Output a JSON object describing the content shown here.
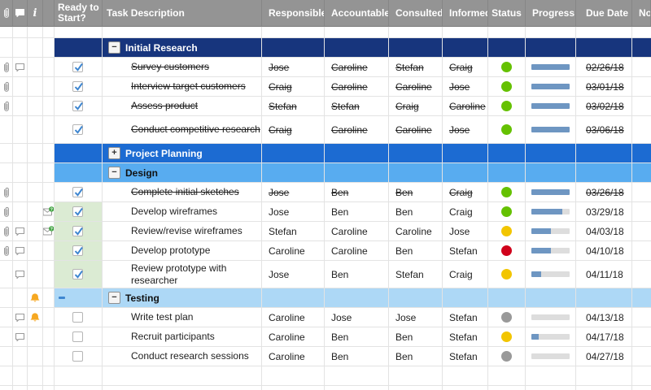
{
  "header": {
    "info_label": "i",
    "columns": [
      "Ready to Start?",
      "Task Description",
      "Responsible",
      "Accountable",
      "Consulted",
      "Informed",
      "Status",
      "Progress",
      "Due Date",
      "Notes"
    ]
  },
  "icons": {
    "paperclip-icon": "attachment paperclip glyph",
    "comment-icon": "speech-bubble comment glyph",
    "info-icon": "italic i",
    "reminder-bell-icon": "amber bell",
    "update-request-icon": "envelope with green ? badge",
    "checkbox-check": "blue checkmark",
    "collapse-icon": "−",
    "expand-icon": "+"
  },
  "colors": {
    "header_bg": "#949494",
    "grid_line": "#E3E3E3",
    "section_navy": "#17357D",
    "section_royal": "#1C6BD2",
    "section_sky": "#58ACF0",
    "section_pale": "#ADD8F6",
    "section_light_text": "#FFFFFF",
    "section_dark_text": "#111111",
    "ready_done_bg": "#DBEBD3",
    "status_green": "#65C101",
    "status_yellow": "#F2C500",
    "status_red": "#D0021B",
    "status_gray": "#999999",
    "progress_fill": "#6E96C2",
    "progress_track": "#DDDDDD",
    "accent_blue": "#3E86D0"
  },
  "rows": [
    {
      "type": "spacer"
    },
    {
      "type": "section",
      "toggle": "collapse",
      "title": "Initial Research",
      "bg": "section_navy",
      "fg": "section_light_text"
    },
    {
      "type": "task",
      "attach": true,
      "comment": true,
      "done": true,
      "strike": true,
      "task": "Survey customers",
      "responsible": "Jose",
      "accountable": "Caroline",
      "consulted": "Stefan",
      "informed": "Craig",
      "status": "green",
      "progress": 100,
      "due": "02/26/18"
    },
    {
      "type": "task",
      "attach": true,
      "done": true,
      "strike": true,
      "task": "Interview target customers",
      "responsible": "Craig",
      "accountable": "Caroline",
      "consulted": "Caroline",
      "informed": "Jose",
      "status": "green",
      "progress": 100,
      "due": "03/01/18"
    },
    {
      "type": "task",
      "attach": true,
      "done": true,
      "strike": true,
      "task": "Assess product",
      "responsible": "Stefan",
      "accountable": "Stefan",
      "consulted": "Craig",
      "informed": "Caroline",
      "status": "green",
      "progress": 100,
      "due": "03/02/18"
    },
    {
      "type": "task",
      "done": true,
      "strike": true,
      "tall": true,
      "task": "Conduct competitive research",
      "responsible": "Craig",
      "accountable": "Caroline",
      "consulted": "Caroline",
      "informed": "Jose",
      "status": "green",
      "progress": 100,
      "due": "03/06/18"
    },
    {
      "type": "section",
      "toggle": "expand",
      "title": "Project Planning",
      "bg": "section_royal",
      "fg": "section_light_text"
    },
    {
      "type": "section",
      "toggle": "collapse",
      "title": "Design",
      "bg": "section_sky",
      "fg": "section_dark_text"
    },
    {
      "type": "task",
      "attach": true,
      "done": true,
      "strike": true,
      "task": "Complete initial sketches",
      "responsible": "Jose",
      "accountable": "Ben",
      "consulted": "Ben",
      "informed": "Craig",
      "status": "green",
      "progress": 100,
      "due": "03/26/18"
    },
    {
      "type": "task",
      "attach": true,
      "update": true,
      "done": true,
      "greenCell": true,
      "task": "Develop wireframes",
      "responsible": "Jose",
      "accountable": "Ben",
      "consulted": "Ben",
      "informed": "Craig",
      "status": "green",
      "progress": 80,
      "due": "03/29/18"
    },
    {
      "type": "task",
      "attach": true,
      "comment": true,
      "update": true,
      "done": true,
      "greenCell": true,
      "task": "Review/revise wireframes",
      "responsible": "Stefan",
      "accountable": "Caroline",
      "consulted": "Caroline",
      "informed": "Jose",
      "status": "yellow",
      "progress": 50,
      "due": "04/03/18"
    },
    {
      "type": "task",
      "attach": true,
      "comment": true,
      "done": true,
      "greenCell": true,
      "task": "Develop prototype",
      "responsible": "Caroline",
      "accountable": "Caroline",
      "consulted": "Ben",
      "informed": "Stefan",
      "status": "red",
      "progress": 50,
      "due": "04/10/18"
    },
    {
      "type": "task",
      "comment": true,
      "done": true,
      "greenCell": true,
      "tall": true,
      "task": "Review prototype with researcher",
      "responsible": "Jose",
      "accountable": "Ben",
      "consulted": "Stefan",
      "informed": "Craig",
      "status": "yellow",
      "progress": 25,
      "due": "04/11/18"
    },
    {
      "type": "section",
      "toggle": "collapse",
      "title": "Testing",
      "bg": "section_pale",
      "fg": "section_dark_text",
      "bell": true,
      "dash": true
    },
    {
      "type": "task",
      "comment": true,
      "bell": true,
      "done": false,
      "task": "Write test plan",
      "responsible": "Caroline",
      "accountable": "Jose",
      "consulted": "Jose",
      "informed": "Stefan",
      "status": "gray",
      "progress": 0,
      "due": "04/13/18"
    },
    {
      "type": "task",
      "comment": true,
      "done": false,
      "task": "Recruit participants",
      "responsible": "Caroline",
      "accountable": "Ben",
      "consulted": "Ben",
      "informed": "Stefan",
      "status": "yellow",
      "progress": 20,
      "due": "04/17/18"
    },
    {
      "type": "task",
      "done": false,
      "task": "Conduct research sessions",
      "responsible": "Caroline",
      "accountable": "Ben",
      "consulted": "Ben",
      "informed": "Stefan",
      "status": "gray",
      "progress": 0,
      "due": "04/27/18"
    },
    {
      "type": "empty"
    },
    {
      "type": "empty"
    }
  ]
}
